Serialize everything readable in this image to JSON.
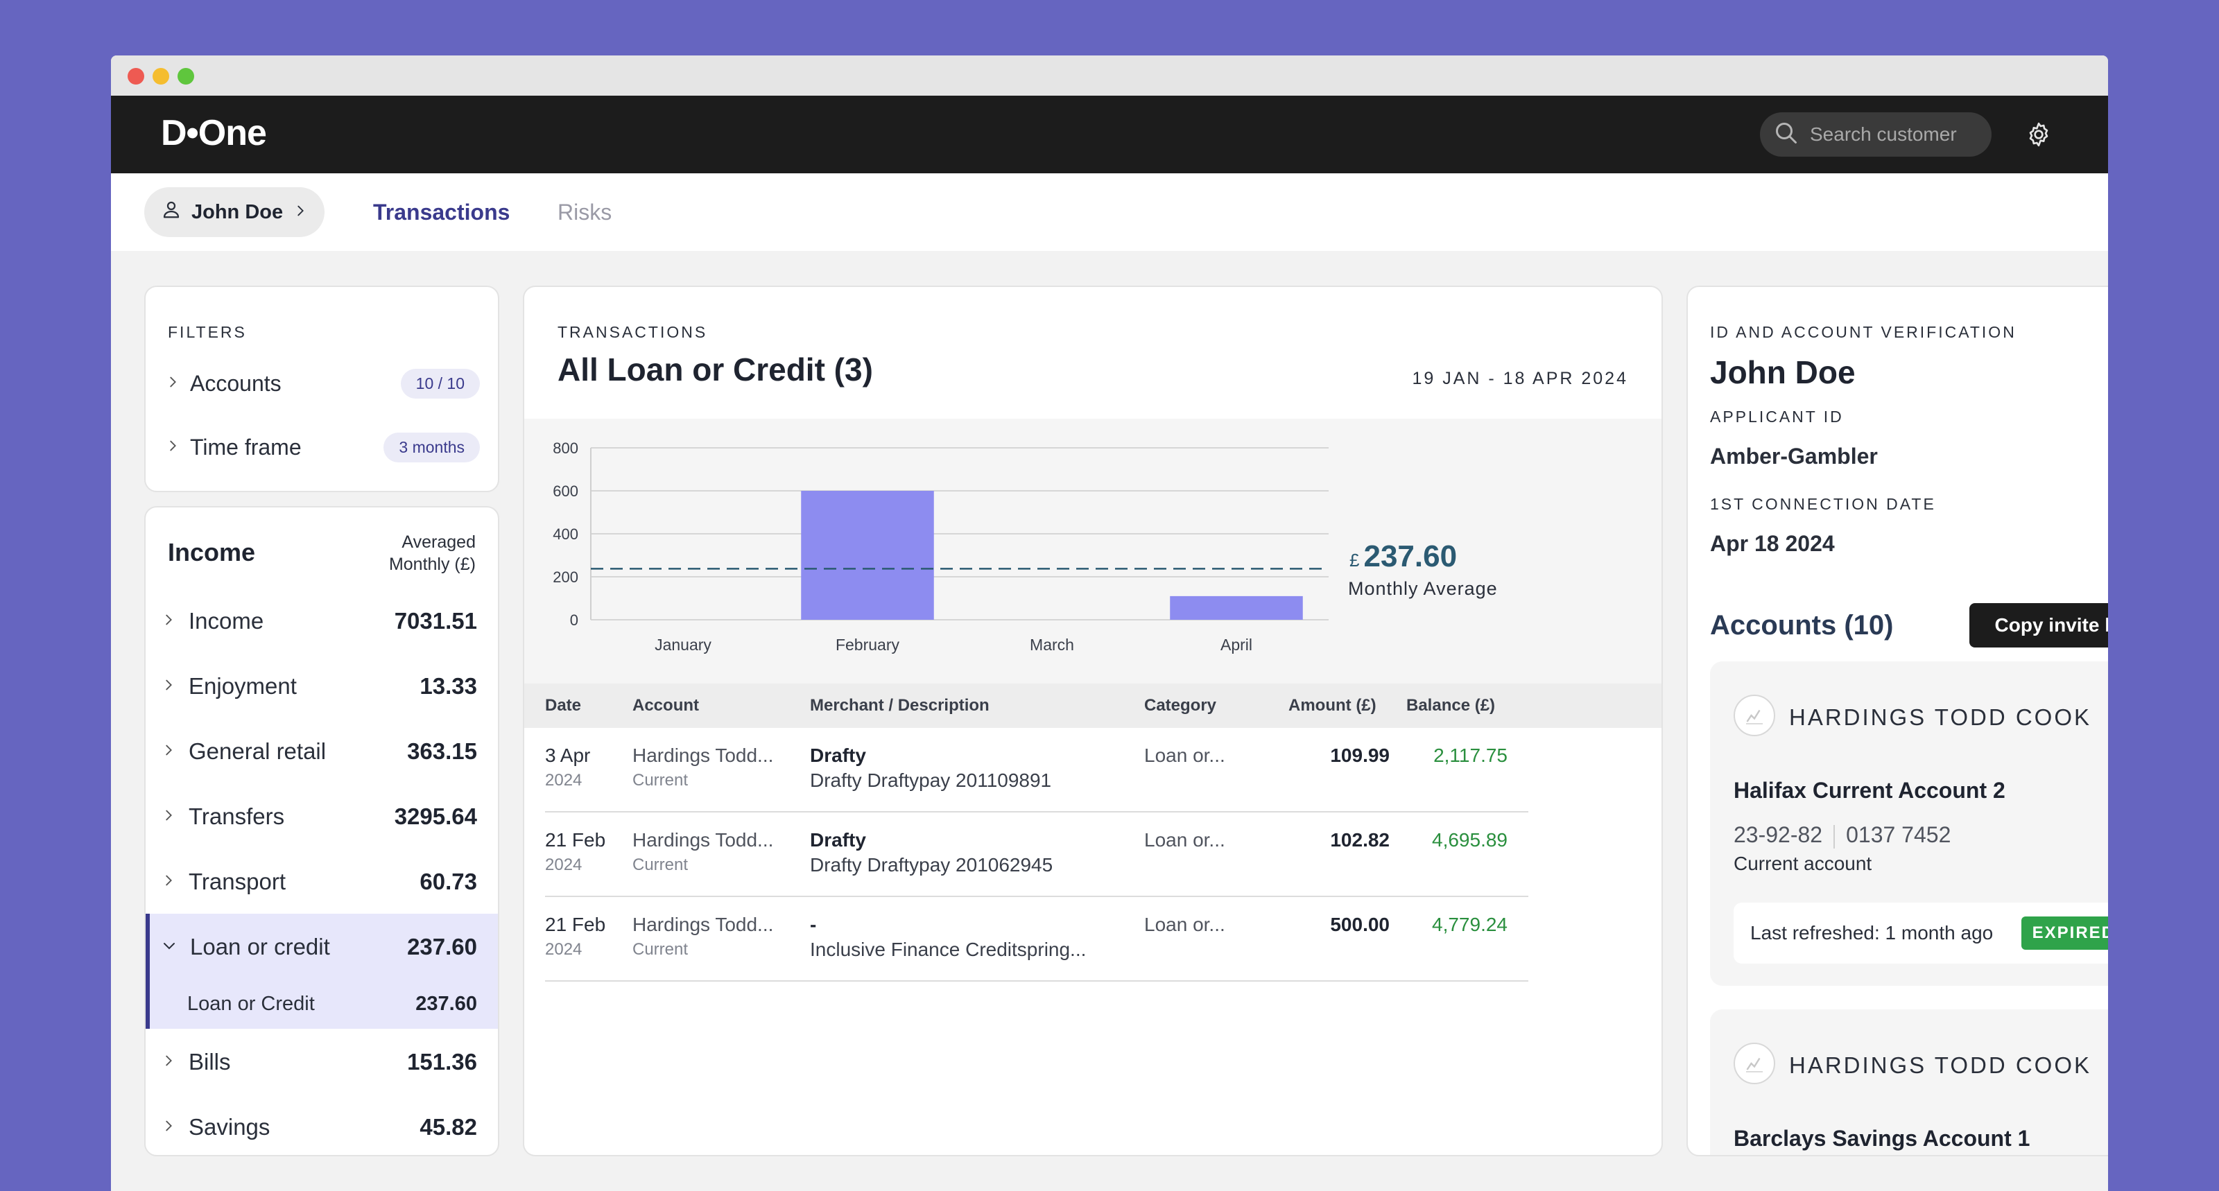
{
  "app": {
    "logo": "D•One"
  },
  "search": {
    "placeholder": "Search customer"
  },
  "customer": {
    "name": "John Doe"
  },
  "tabs": [
    {
      "label": "Transactions",
      "active": true
    },
    {
      "label": "Risks",
      "active": false
    }
  ],
  "filters": {
    "title": "FILTERS",
    "items": [
      {
        "label": "Accounts",
        "badge": "10 / 10"
      },
      {
        "label": "Time frame",
        "badge": "3 months"
      }
    ]
  },
  "income": {
    "title": "Income",
    "subtitle_line1": "Averaged",
    "subtitle_line2": "Monthly (£)",
    "items": [
      {
        "label": "Income",
        "value": "7031.51"
      },
      {
        "label": "Enjoyment",
        "value": "13.33"
      },
      {
        "label": "General retail",
        "value": "363.15"
      },
      {
        "label": "Transfers",
        "value": "3295.64"
      },
      {
        "label": "Transport",
        "value": "60.73"
      },
      {
        "label": "Loan or credit",
        "value": "237.60",
        "expanded": true
      },
      {
        "label": "Bills",
        "value": "151.36"
      },
      {
        "label": "Savings",
        "value": "45.82"
      }
    ],
    "sub_item": {
      "label": "Loan or Credit",
      "value": "237.60"
    }
  },
  "transactions": {
    "section_label": "TRANSACTIONS",
    "title": "All Loan or Credit (3)",
    "date_range": "19 JAN - 18 APR 2024",
    "average": {
      "currency": "£",
      "value": "237.60",
      "label": "Monthly Average"
    },
    "columns": [
      "Date",
      "Account",
      "Merchant / Description",
      "Category",
      "Amount (£)",
      "Balance (£)"
    ],
    "rows": [
      {
        "date": "3 Apr",
        "year": "2024",
        "account": "Hardings Todd...",
        "account_type": "Current",
        "merchant": "Drafty",
        "description": "Drafty Draftypay 201109891",
        "category": "Loan or...",
        "amount": "109.99",
        "balance": "2,117.75"
      },
      {
        "date": "21 Feb",
        "year": "2024",
        "account": "Hardings Todd...",
        "account_type": "Current",
        "merchant": "Drafty",
        "description": "Drafty Draftypay 201062945",
        "category": "Loan or...",
        "amount": "102.82",
        "balance": "4,695.89"
      },
      {
        "date": "21 Feb",
        "year": "2024",
        "account": "Hardings Todd...",
        "account_type": "Current",
        "merchant": "-",
        "description": "Inclusive Finance Creditspring...",
        "category": "Loan or...",
        "amount": "500.00",
        "balance": "4,779.24"
      }
    ]
  },
  "chart_data": {
    "type": "bar",
    "categories": [
      "January",
      "February",
      "March",
      "April"
    ],
    "values": [
      0,
      600,
      0,
      110
    ],
    "average_line": 237.6,
    "ylim": [
      0,
      800
    ],
    "yticks": [
      0,
      200,
      400,
      600,
      800
    ],
    "grid": true,
    "bar_color": "#8d8cf0",
    "title": "",
    "xlabel": "",
    "ylabel": ""
  },
  "verification": {
    "section_label": "ID AND ACCOUNT VERIFICATION",
    "name": "John Doe",
    "applicant_id_label": "APPLICANT ID",
    "applicant_id": "Amber-Gambler",
    "connection_label": "1ST CONNECTION DATE",
    "connection_date": "Apr 18 2024",
    "accounts_title": "Accounts (10)",
    "copy_button": "Copy invite link",
    "accounts": [
      {
        "bank": "HARDINGS TODD COOK",
        "name": "Halifax Current Account 2",
        "sort_code": "23-92-82",
        "number": "0137 7452",
        "type": "Current account",
        "refreshed": "Last refreshed: 1 month ago",
        "status": "EXPIRED"
      },
      {
        "bank": "HARDINGS TODD COOK",
        "name": "Barclays Savings Account 1"
      }
    ]
  },
  "colors": {
    "background": "#6665c0",
    "accent": "#3a3a8c",
    "positive": "#2a8f3e",
    "expired": "#2fa34a",
    "average": "#2b5a72"
  }
}
